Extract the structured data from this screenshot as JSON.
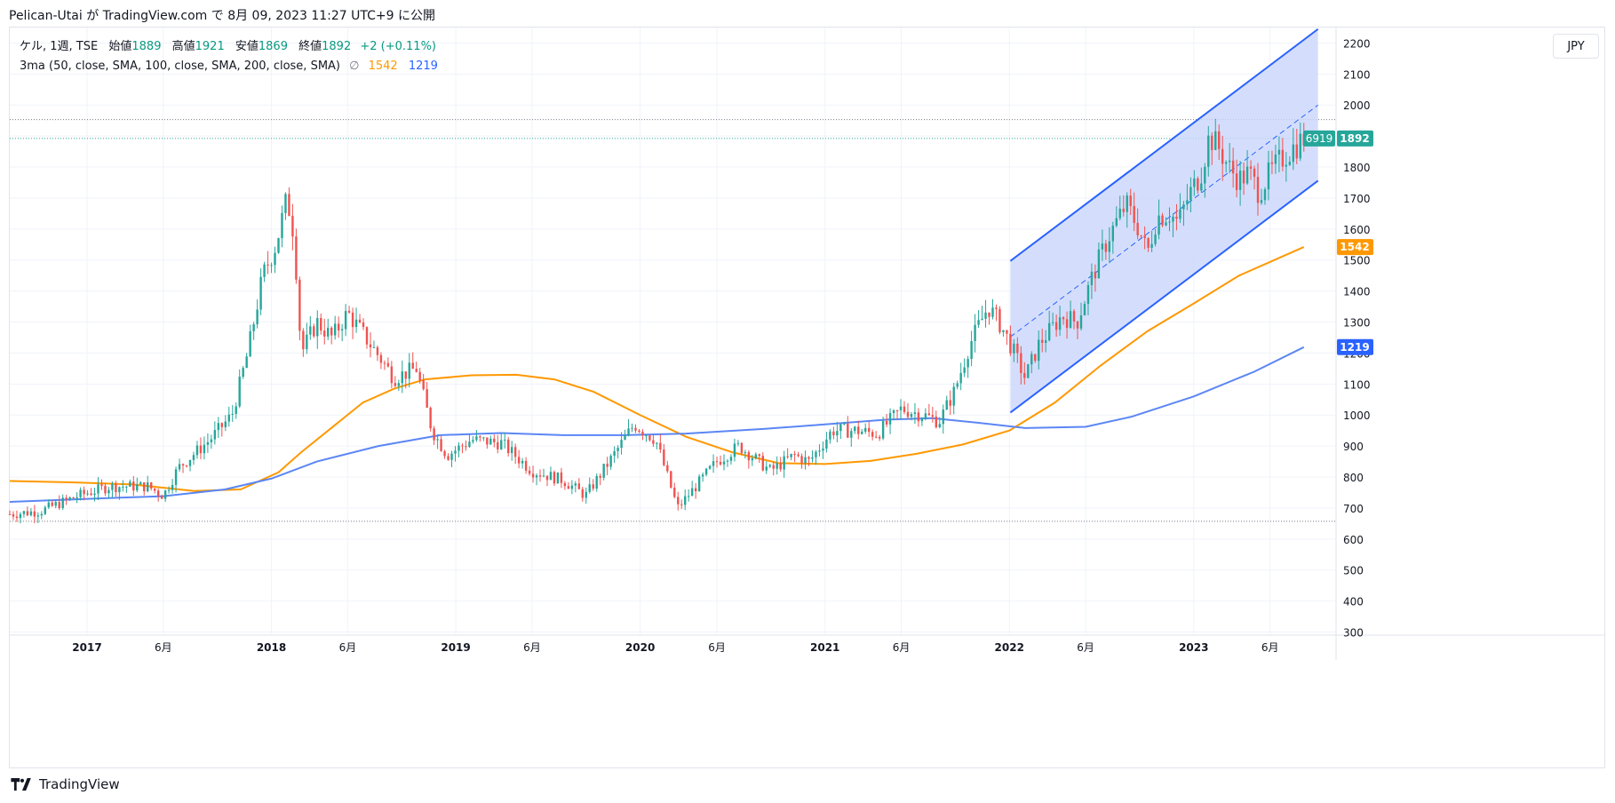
{
  "header": {
    "published": "Pelican-Utai が TradingView.com で 8月 09, 2023 11:27 UTC+9 に公開"
  },
  "legend": {
    "symbol": "ケル, 1週, TSE",
    "open_label": "始値",
    "open": "1889",
    "high_label": "高値",
    "high": "1921",
    "low_label": "安値",
    "low": "1869",
    "close_label": "終値",
    "close": "1892",
    "change": "+2 (+0.11%)",
    "indicator": "3ma (50, close, SMA, 100, close, SMA, 200, close, SMA)",
    "hidden_symbol": "∅",
    "ma_100_value": "1542",
    "ma_200_value": "1219"
  },
  "currency_button": "JPY",
  "footer": {
    "brand": "TradingView"
  },
  "colors": {
    "up": "#26a69a",
    "down": "#ef5350",
    "ma100": "#ff9800",
    "ma200": "#5b86f5",
    "channel": "#2962ff",
    "channel_fill": "#c9d6fb"
  },
  "chart_data": {
    "type": "candlestick",
    "title": "",
    "y_axis": {
      "ticks": [
        300,
        400,
        500,
        600,
        700,
        800,
        900,
        1000,
        1100,
        1200,
        1300,
        1400,
        1500,
        1600,
        1700,
        1800,
        1900,
        2000,
        2100,
        2200
      ],
      "ylim": [
        290,
        2250
      ],
      "position": "right"
    },
    "x_axis": {
      "ticks": [
        {
          "label": "2017",
          "date": "2017-01-01",
          "bold": true
        },
        {
          "label": "6月",
          "date": "2017-06-01"
        },
        {
          "label": "2018",
          "date": "2018-01-01",
          "bold": true
        },
        {
          "label": "6月",
          "date": "2018-06-01"
        },
        {
          "label": "2019",
          "date": "2019-01-01",
          "bold": true
        },
        {
          "label": "6月",
          "date": "2019-06-01"
        },
        {
          "label": "2020",
          "date": "2020-01-01",
          "bold": true
        },
        {
          "label": "6月",
          "date": "2020-06-01"
        },
        {
          "label": "2021",
          "date": "2021-01-01",
          "bold": true
        },
        {
          "label": "6月",
          "date": "2021-06-01"
        },
        {
          "label": "2022",
          "date": "2022-01-01",
          "bold": true
        },
        {
          "label": "6月",
          "date": "2022-06-01"
        },
        {
          "label": "2023",
          "date": "2023-01-01",
          "bold": true
        },
        {
          "label": "6月",
          "date": "2023-06-01"
        }
      ],
      "range": [
        "2016-08-01",
        "2023-10-08"
      ]
    },
    "price_labels": [
      {
        "name": "last",
        "value": 1892,
        "text": "1892",
        "prefix": "6919",
        "color": "#26a69a"
      },
      {
        "name": "ma100",
        "value": 1542,
        "text": "1542",
        "color": "#ff9800"
      },
      {
        "name": "ma200",
        "value": 1219,
        "text": "1219",
        "color": "#2962ff"
      }
    ],
    "horizontal_lines": [
      {
        "value": 1953,
        "style": "dotted"
      },
      {
        "value": 1892,
        "style": "dotted-green"
      },
      {
        "value": 657,
        "style": "dotted"
      }
    ],
    "channel": {
      "start": "2022-01-03",
      "end": "2023-09-04",
      "upper": [
        1497,
        2245
      ],
      "lower": [
        1008,
        1756
      ],
      "mid": [
        1252,
        2000
      ]
    },
    "key_points": [
      [
        "2016-08-01",
        680
      ],
      [
        "2016-10-01",
        690
      ],
      [
        "2016-12-15",
        740
      ],
      [
        "2017-02-15",
        770
      ],
      [
        "2017-05-01",
        770
      ],
      [
        "2017-06-01",
        740
      ],
      [
        "2017-07-01",
        830
      ],
      [
        "2017-09-01",
        920
      ],
      [
        "2017-10-15",
        1000
      ],
      [
        "2017-11-15",
        1200
      ],
      [
        "2017-12-15",
        1450
      ],
      [
        "2018-01-10",
        1550
      ],
      [
        "2018-02-01",
        1700
      ],
      [
        "2018-02-15",
        1580
      ],
      [
        "2018-03-01",
        1200
      ],
      [
        "2018-04-01",
        1300
      ],
      [
        "2018-05-01",
        1250
      ],
      [
        "2018-06-01",
        1330
      ],
      [
        "2018-07-15",
        1230
      ],
      [
        "2018-09-01",
        1120
      ],
      [
        "2018-10-15",
        1150
      ],
      [
        "2018-11-15",
        950
      ],
      [
        "2018-12-15",
        870
      ],
      [
        "2019-02-01",
        920
      ],
      [
        "2019-04-01",
        910
      ],
      [
        "2019-06-01",
        820
      ],
      [
        "2019-08-01",
        790
      ],
      [
        "2019-09-15",
        740
      ],
      [
        "2019-11-01",
        850
      ],
      [
        "2019-12-20",
        970
      ],
      [
        "2020-02-01",
        920
      ],
      [
        "2020-03-15",
        700
      ],
      [
        "2020-04-15",
        760
      ],
      [
        "2020-06-01",
        850
      ],
      [
        "2020-07-15",
        900
      ],
      [
        "2020-09-15",
        820
      ],
      [
        "2020-11-01",
        870
      ],
      [
        "2020-12-01",
        850
      ],
      [
        "2021-01-15",
        950
      ],
      [
        "2021-03-01",
        950
      ],
      [
        "2021-04-15",
        940
      ],
      [
        "2021-06-01",
        1020
      ],
      [
        "2021-07-15",
        1000
      ],
      [
        "2021-08-15",
        980
      ],
      [
        "2021-09-15",
        1080
      ],
      [
        "2021-10-15",
        1230
      ],
      [
        "2021-11-20",
        1350
      ],
      [
        "2021-12-15",
        1290
      ],
      [
        "2022-01-05",
        1220
      ],
      [
        "2022-02-01",
        1120
      ],
      [
        "2022-03-01",
        1230
      ],
      [
        "2022-04-15",
        1320
      ],
      [
        "2022-05-15",
        1300
      ],
      [
        "2022-06-15",
        1450
      ],
      [
        "2022-07-15",
        1570
      ],
      [
        "2022-08-20",
        1680
      ],
      [
        "2022-09-15",
        1600
      ],
      [
        "2022-10-01",
        1520
      ],
      [
        "2022-10-20",
        1640
      ],
      [
        "2022-11-15",
        1650
      ],
      [
        "2022-12-01",
        1620
      ],
      [
        "2022-12-20",
        1700
      ],
      [
        "2023-01-15",
        1780
      ],
      [
        "2023-02-01",
        1900
      ],
      [
        "2023-02-20",
        1860
      ],
      [
        "2023-03-15",
        1790
      ],
      [
        "2023-04-01",
        1760
      ],
      [
        "2023-04-20",
        1780
      ],
      [
        "2023-05-10",
        1720
      ],
      [
        "2023-06-01",
        1780
      ],
      [
        "2023-07-01",
        1840
      ],
      [
        "2023-08-07",
        1892
      ]
    ],
    "series": [
      {
        "name": "SMA 100",
        "color": "#ff9800",
        "points": [
          [
            "2016-08-01",
            787
          ],
          [
            "2016-12-01",
            783
          ],
          [
            "2017-04-01",
            776
          ],
          [
            "2017-08-01",
            755
          ],
          [
            "2017-11-01",
            760
          ],
          [
            "2018-01-15",
            815
          ],
          [
            "2018-03-01",
            880
          ],
          [
            "2018-05-01",
            960
          ],
          [
            "2018-07-01",
            1040
          ],
          [
            "2018-09-01",
            1085
          ],
          [
            "2018-11-01",
            1115
          ],
          [
            "2019-02-01",
            1128
          ],
          [
            "2019-05-01",
            1130
          ],
          [
            "2019-07-15",
            1115
          ],
          [
            "2019-10-01",
            1075
          ],
          [
            "2020-01-01",
            1000
          ],
          [
            "2020-04-01",
            930
          ],
          [
            "2020-07-01",
            880
          ],
          [
            "2020-10-01",
            845
          ],
          [
            "2021-01-01",
            842
          ],
          [
            "2021-04-01",
            852
          ],
          [
            "2021-07-01",
            875
          ],
          [
            "2021-10-01",
            905
          ],
          [
            "2022-01-01",
            950
          ],
          [
            "2022-04-01",
            1040
          ],
          [
            "2022-07-01",
            1160
          ],
          [
            "2022-10-01",
            1270
          ],
          [
            "2023-01-01",
            1360
          ],
          [
            "2023-04-01",
            1450
          ],
          [
            "2023-08-07",
            1542
          ]
        ]
      },
      {
        "name": "SMA 200",
        "color": "#5b86f5",
        "points": [
          [
            "2016-08-01",
            720
          ],
          [
            "2017-03-01",
            733
          ],
          [
            "2017-06-01",
            738
          ],
          [
            "2017-10-01",
            760
          ],
          [
            "2018-01-01",
            795
          ],
          [
            "2018-04-01",
            850
          ],
          [
            "2018-08-01",
            900
          ],
          [
            "2018-12-01",
            935
          ],
          [
            "2019-04-01",
            942
          ],
          [
            "2019-08-01",
            935
          ],
          [
            "2019-12-01",
            935
          ],
          [
            "2020-04-01",
            940
          ],
          [
            "2020-09-01",
            955
          ],
          [
            "2021-01-01",
            970
          ],
          [
            "2021-05-01",
            985
          ],
          [
            "2021-08-01",
            990
          ],
          [
            "2021-11-01",
            975
          ],
          [
            "2022-02-01",
            958
          ],
          [
            "2022-06-01",
            962
          ],
          [
            "2022-09-01",
            995
          ],
          [
            "2023-01-01",
            1060
          ],
          [
            "2023-05-01",
            1140
          ],
          [
            "2023-08-07",
            1219
          ]
        ]
      }
    ]
  }
}
